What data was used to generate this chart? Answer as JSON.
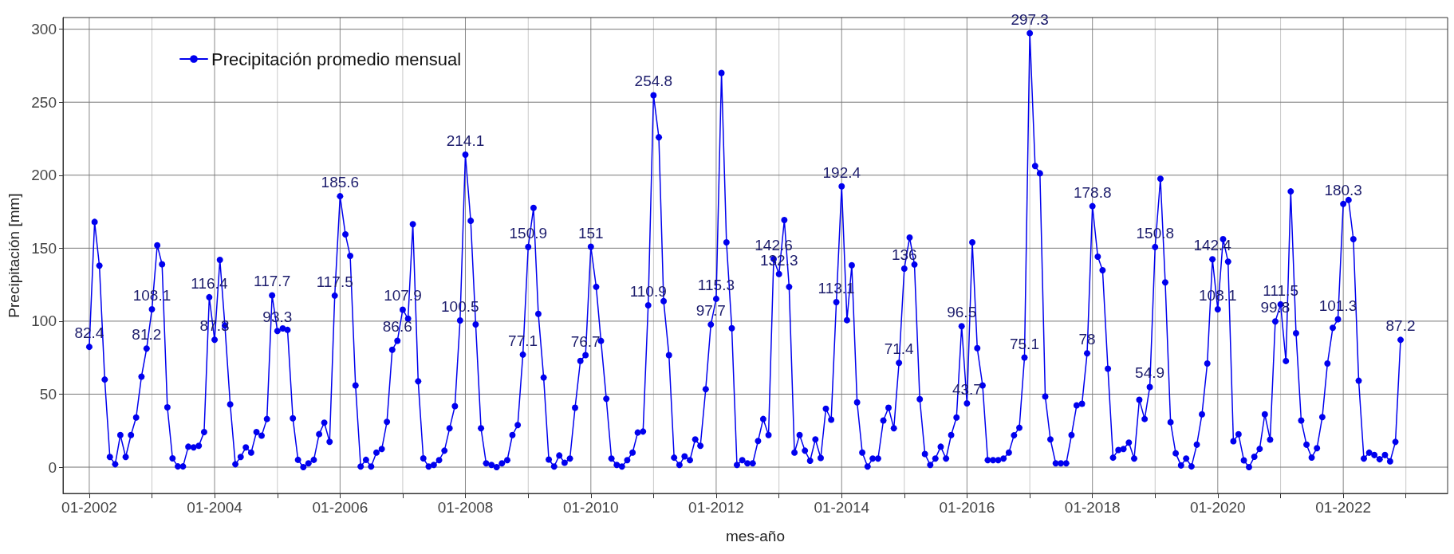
{
  "chart_data": {
    "type": "line",
    "xlabel": "mes-año",
    "ylabel": "Precipitación [mm]",
    "x": [
      "2002-01",
      "2002-02",
      "2002-03",
      "2002-04",
      "2002-05",
      "2002-06",
      "2002-07",
      "2002-08",
      "2002-09",
      "2002-10",
      "2002-11",
      "2002-12",
      "2003-01",
      "2003-02",
      "2003-03",
      "2003-04",
      "2003-05",
      "2003-06",
      "2003-07",
      "2003-08",
      "2003-09",
      "2003-10",
      "2003-11",
      "2003-12",
      "2004-01",
      "2004-02",
      "2004-03",
      "2004-04",
      "2004-05",
      "2004-06",
      "2004-07",
      "2004-08",
      "2004-09",
      "2004-10",
      "2004-11",
      "2004-12",
      "2005-01",
      "2005-02",
      "2005-03",
      "2005-04",
      "2005-05",
      "2005-06",
      "2005-07",
      "2005-08",
      "2005-09",
      "2005-10",
      "2005-11",
      "2005-12",
      "2006-01",
      "2006-02",
      "2006-03",
      "2006-04",
      "2006-05",
      "2006-06",
      "2006-07",
      "2006-08",
      "2006-09",
      "2006-10",
      "2006-11",
      "2006-12",
      "2007-01",
      "2007-02",
      "2007-03",
      "2007-04",
      "2007-05",
      "2007-06",
      "2007-07",
      "2007-08",
      "2007-09",
      "2007-10",
      "2007-11",
      "2007-12",
      "2008-01",
      "2008-02",
      "2008-03",
      "2008-04",
      "2008-05",
      "2008-06",
      "2008-07",
      "2008-08",
      "2008-09",
      "2008-10",
      "2008-11",
      "2008-12",
      "2009-01",
      "2009-02",
      "2009-03",
      "2009-04",
      "2009-05",
      "2009-06",
      "2009-07",
      "2009-08",
      "2009-09",
      "2009-10",
      "2009-11",
      "2009-12",
      "2010-01",
      "2010-02",
      "2010-03",
      "2010-04",
      "2010-05",
      "2010-06",
      "2010-07",
      "2010-08",
      "2010-09",
      "2010-10",
      "2010-11",
      "2010-12",
      "2011-01",
      "2011-02",
      "2011-03",
      "2011-04",
      "2011-05",
      "2011-06",
      "2011-07",
      "2011-08",
      "2011-09",
      "2011-10",
      "2011-11",
      "2011-12",
      "2012-01",
      "2012-02",
      "2012-03",
      "2012-04",
      "2012-05",
      "2012-06",
      "2012-07",
      "2012-08",
      "2012-09",
      "2012-10",
      "2012-11",
      "2012-12",
      "2013-01",
      "2013-02",
      "2013-03",
      "2013-04",
      "2013-05",
      "2013-06",
      "2013-07",
      "2013-08",
      "2013-09",
      "2013-10",
      "2013-11",
      "2013-12",
      "2014-01",
      "2014-02",
      "2014-03",
      "2014-04",
      "2014-05",
      "2014-06",
      "2014-07",
      "2014-08",
      "2014-09",
      "2014-10",
      "2014-11",
      "2014-12",
      "2015-01",
      "2015-02",
      "2015-03",
      "2015-04",
      "2015-05",
      "2015-06",
      "2015-07",
      "2015-08",
      "2015-09",
      "2015-10",
      "2015-11",
      "2015-12",
      "2016-01",
      "2016-02",
      "2016-03",
      "2016-04",
      "2016-05",
      "2016-06",
      "2016-07",
      "2016-08",
      "2016-09",
      "2016-10",
      "2016-11",
      "2016-12",
      "2017-01",
      "2017-02",
      "2017-03",
      "2017-04",
      "2017-05",
      "2017-06",
      "2017-07",
      "2017-08",
      "2017-09",
      "2017-10",
      "2017-11",
      "2017-12",
      "2018-01",
      "2018-02",
      "2018-03",
      "2018-04",
      "2018-05",
      "2018-06",
      "2018-07",
      "2018-08",
      "2018-09",
      "2018-10",
      "2018-11",
      "2018-12",
      "2019-01",
      "2019-02",
      "2019-03",
      "2019-04",
      "2019-05",
      "2019-06",
      "2019-07",
      "2019-08",
      "2019-09",
      "2019-10",
      "2019-11",
      "2019-12",
      "2020-01",
      "2020-02",
      "2020-03",
      "2020-04",
      "2020-05",
      "2020-06",
      "2020-07",
      "2020-08",
      "2020-09",
      "2020-10",
      "2020-11",
      "2020-12",
      "2021-01",
      "2021-02",
      "2021-03",
      "2021-04",
      "2021-05",
      "2021-06",
      "2021-07",
      "2021-08",
      "2021-09",
      "2021-10",
      "2021-11",
      "2021-12",
      "2022-01",
      "2022-02",
      "2022-03",
      "2022-04",
      "2022-05",
      "2022-06",
      "2022-07",
      "2022-08",
      "2022-09",
      "2022-10",
      "2022-11",
      "2022-12"
    ],
    "series": [
      {
        "name": "Precipitación promedio mensual",
        "color": "#0000ee",
        "values": [
          82.4,
          168,
          138,
          60,
          7,
          2,
          22,
          7,
          22,
          34,
          62,
          81.2,
          108.1,
          152,
          139,
          41,
          6,
          0.5,
          0.5,
          14,
          13.5,
          14.6,
          24,
          116.4,
          87.3,
          142,
          97,
          43,
          2,
          7,
          13.5,
          10,
          24,
          21.6,
          33,
          117.7,
          93.3,
          95,
          94,
          33.5,
          5,
          0,
          2.6,
          5,
          22.6,
          30.5,
          17.4,
          117.5,
          185.6,
          159.5,
          144.7,
          56,
          0.4,
          5,
          0.4,
          10,
          12.4,
          31,
          80.4,
          86.6,
          107.9,
          101.7,
          166.4,
          58.8,
          6,
          0.4,
          1.5,
          4.8,
          11.3,
          26.6,
          41.8,
          100.5,
          214.1,
          168.8,
          97.8,
          26.6,
          2.6,
          1.5,
          0,
          2.6,
          4.8,
          22,
          28.8,
          77.1,
          150.9,
          177.6,
          105,
          61.4,
          5.2,
          0.4,
          8,
          3,
          5.9,
          40.7,
          72.8,
          76.7,
          151,
          123.5,
          86.5,
          46.8,
          5.9,
          1.5,
          0.4,
          4.8,
          10,
          23.7,
          24.4,
          110.9,
          254.8,
          226,
          113.7,
          76.7,
          6.5,
          1.5,
          7.4,
          4.8,
          19,
          14.6,
          53.4,
          97.7,
          115.3,
          270,
          154,
          95.2,
          1.5,
          4.8,
          2.6,
          2.6,
          17.9,
          33,
          22,
          142.6,
          132.3,
          169.3,
          123.5,
          10,
          22,
          11.3,
          4.4,
          19,
          6.3,
          40,
          32.5,
          113.1,
          192.4,
          100.7,
          138.3,
          44.4,
          10,
          0.4,
          5.9,
          5.9,
          32,
          40.7,
          26.6,
          71.4,
          136,
          157.3,
          138.8,
          46.6,
          9,
          1.5,
          5.9,
          14,
          5.9,
          22,
          34,
          96.5,
          43.7,
          154,
          81.5,
          56,
          4.8,
          4.8,
          4.8,
          5.9,
          10,
          21.8,
          27,
          75.1,
          297.3,
          206.3,
          201.3,
          48.4,
          19,
          2.6,
          2.6,
          2.6,
          22,
          42.3,
          43.4,
          78,
          178.8,
          144.2,
          134.9,
          67.5,
          6.5,
          11.8,
          12.4,
          16.8,
          5.9,
          46.2,
          33,
          54.9,
          150.8,
          197.6,
          126.6,
          30.8,
          9.5,
          1.2,
          5.9,
          0.5,
          15.4,
          36.2,
          71,
          142.4,
          108.1,
          156.2,
          140.8,
          17.8,
          22.5,
          4.7,
          0,
          7.1,
          12.5,
          36.2,
          18.9,
          99.8,
          111.5,
          72.7,
          188.9,
          91.8,
          32,
          15.4,
          6.6,
          13,
          34.3,
          71,
          95.4,
          101.3,
          180.3,
          183,
          156.2,
          59.2,
          5.9,
          9.9,
          8.3,
          5.4,
          8.3,
          4,
          17.3,
          87.2
        ],
        "value_labels": [
          "82.4",
          null,
          null,
          null,
          null,
          null,
          null,
          null,
          null,
          null,
          null,
          "81.2",
          "108.1",
          null,
          null,
          null,
          null,
          null,
          null,
          null,
          null,
          null,
          null,
          "116.4",
          "87.3",
          null,
          null,
          null,
          null,
          null,
          null,
          null,
          null,
          null,
          null,
          "117.7",
          "93.3",
          null,
          null,
          null,
          null,
          null,
          null,
          null,
          null,
          null,
          null,
          "117.5",
          "185.6",
          null,
          null,
          null,
          null,
          null,
          null,
          null,
          null,
          null,
          null,
          "86.6",
          "107.9",
          null,
          null,
          null,
          null,
          null,
          null,
          null,
          null,
          null,
          null,
          "100.5",
          "214.1",
          null,
          null,
          null,
          null,
          null,
          null,
          null,
          null,
          null,
          null,
          "77.1",
          "150.9",
          null,
          null,
          null,
          null,
          null,
          null,
          null,
          null,
          null,
          null,
          "76.7",
          "151",
          null,
          null,
          null,
          null,
          null,
          null,
          null,
          null,
          null,
          null,
          "110.9",
          "254.8",
          null,
          null,
          null,
          null,
          null,
          null,
          null,
          null,
          null,
          null,
          "97.7",
          "115.3",
          null,
          null,
          null,
          null,
          null,
          null,
          null,
          null,
          null,
          null,
          "142.6",
          "132.3",
          null,
          null,
          null,
          null,
          null,
          null,
          null,
          null,
          null,
          null,
          "113.1",
          "192.4",
          null,
          null,
          null,
          null,
          null,
          null,
          null,
          null,
          null,
          null,
          "71.4",
          "136",
          null,
          null,
          null,
          null,
          null,
          null,
          null,
          null,
          null,
          null,
          "96.5",
          "43.7",
          null,
          null,
          null,
          null,
          null,
          null,
          null,
          null,
          null,
          null,
          "75.1",
          "297.3",
          null,
          null,
          null,
          null,
          null,
          null,
          null,
          null,
          null,
          null,
          "78",
          "178.8",
          null,
          null,
          null,
          null,
          null,
          null,
          null,
          null,
          null,
          null,
          "54.9",
          "150.8",
          null,
          null,
          null,
          null,
          null,
          null,
          null,
          null,
          null,
          null,
          "142.4",
          "108.1",
          null,
          null,
          null,
          null,
          null,
          null,
          null,
          null,
          null,
          null,
          "99.8",
          "111.5",
          null,
          null,
          null,
          null,
          null,
          null,
          null,
          null,
          null,
          null,
          "101.3",
          "180.3",
          null,
          null,
          null,
          null,
          null,
          null,
          null,
          null,
          null,
          null,
          "87.2"
        ]
      }
    ],
    "xlim": [
      "2001-08",
      "2023-09"
    ],
    "xticks": [
      {
        "value": "2002-01",
        "label": "01-2002"
      },
      {
        "value": "2003-01",
        "label": null
      },
      {
        "value": "2004-01",
        "label": "01-2004"
      },
      {
        "value": "2005-01",
        "label": null
      },
      {
        "value": "2006-01",
        "label": "01-2006"
      },
      {
        "value": "2007-01",
        "label": null
      },
      {
        "value": "2008-01",
        "label": "01-2008"
      },
      {
        "value": "2009-01",
        "label": null
      },
      {
        "value": "2010-01",
        "label": "01-2010"
      },
      {
        "value": "2011-01",
        "label": null
      },
      {
        "value": "2012-01",
        "label": "01-2012"
      },
      {
        "value": "2013-01",
        "label": null
      },
      {
        "value": "2014-01",
        "label": "01-2014"
      },
      {
        "value": "2015-01",
        "label": null
      },
      {
        "value": "2016-01",
        "label": "01-2016"
      },
      {
        "value": "2017-01",
        "label": null
      },
      {
        "value": "2018-01",
        "label": "01-2018"
      },
      {
        "value": "2019-01",
        "label": null
      },
      {
        "value": "2020-01",
        "label": "01-2020"
      },
      {
        "value": "2021-01",
        "label": null
      },
      {
        "value": "2022-01",
        "label": "01-2022"
      },
      {
        "value": "2023-01",
        "label": null
      }
    ],
    "ylim": [
      -18,
      308
    ],
    "yticks": [
      0,
      50,
      100,
      150,
      200,
      250,
      300
    ],
    "grid": true,
    "legend": "top left",
    "marker": "circle",
    "line_style": "solid"
  }
}
